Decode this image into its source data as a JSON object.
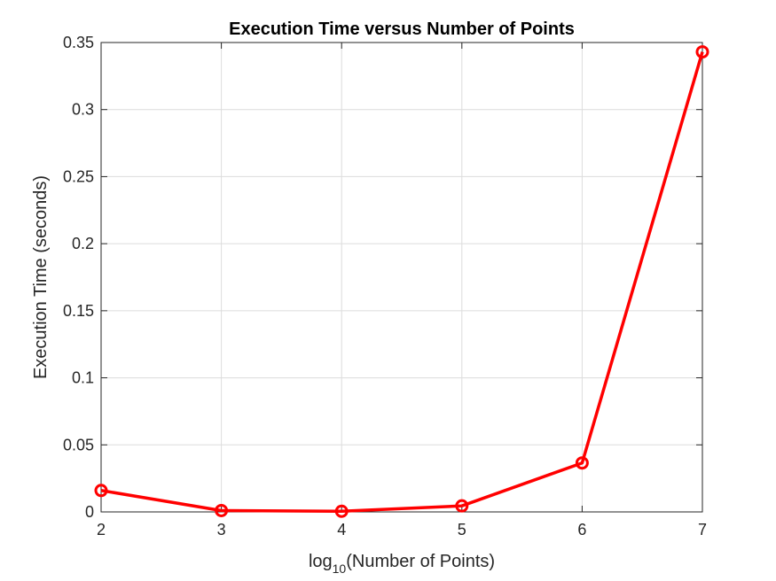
{
  "chart_data": {
    "type": "line",
    "title": "Execution Time versus Number of Points",
    "xlabel_base": "log",
    "xlabel_sub": "10",
    "xlabel_rest": "(Number of Points)",
    "ylabel": "Execution Time (seconds)",
    "xlim": [
      2,
      7
    ],
    "ylim": [
      0,
      0.35
    ],
    "xticks": [
      2,
      3,
      4,
      5,
      6,
      7
    ],
    "yticks": [
      0,
      0.05,
      0.1,
      0.15,
      0.2,
      0.25,
      0.3,
      0.35
    ],
    "xtick_labels": [
      "2",
      "3",
      "4",
      "5",
      "6",
      "7"
    ],
    "ytick_labels": [
      "0",
      "0.05",
      "0.1",
      "0.15",
      "0.2",
      "0.25",
      "0.3",
      "0.35"
    ],
    "grid": true,
    "series": [
      {
        "color": "#ff0000",
        "marker": "circle",
        "x": [
          2,
          3,
          4,
          5,
          6,
          7
        ],
        "y": [
          0.016,
          0.001,
          0.0005,
          0.0045,
          0.0365,
          0.343
        ]
      }
    ]
  }
}
